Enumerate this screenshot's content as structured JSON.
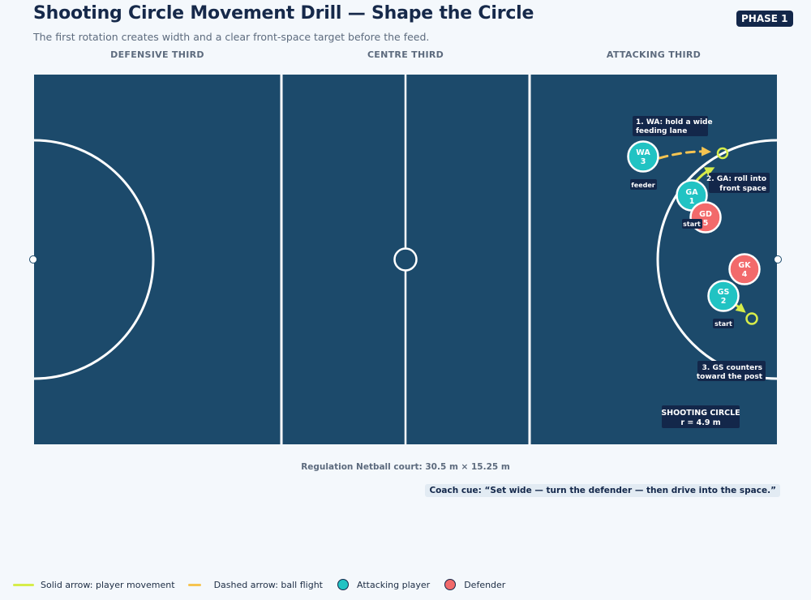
{
  "header": {
    "title": "Shooting Circle Movement Drill — Shape the Circle",
    "subtitle": "The first rotation creates width and a clear front-space target before the feed.",
    "phase_badge": "PHASE 1"
  },
  "thirds": [
    "DEFENSIVE THIRD",
    "CENTRE THIRD",
    "ATTACKING THIRD"
  ],
  "court": {
    "color": "#1c4a6b",
    "line_color": "#ffffff",
    "note": "Regulation Netball court: 30.5 m × 15.25 m",
    "shooting_circle_label": [
      "SHOOTING CIRCLE",
      "r = 4.9 m"
    ]
  },
  "colors": {
    "attacker": "#21c3c3",
    "defender": "#f26a6b",
    "movement": "#d6ec4a",
    "ball": "#f6c451",
    "label_bg": "#13274a"
  },
  "players": [
    {
      "code": "WA",
      "number": "3",
      "team": "attacker"
    },
    {
      "code": "GA",
      "number": "1",
      "team": "attacker"
    },
    {
      "code": "GD",
      "number": "5",
      "team": "defender"
    },
    {
      "code": "GK",
      "number": "4",
      "team": "defender"
    },
    {
      "code": "GS",
      "number": "2",
      "team": "attacker"
    }
  ],
  "tags": {
    "feeder": "feeder",
    "start_ga": "start",
    "start_gs": "start"
  },
  "callouts": {
    "step1": [
      "1. WA: hold a wide",
      "feeding lane"
    ],
    "step2": [
      "2. GA: roll into",
      "front space"
    ],
    "step3": [
      "3. GS counters",
      "toward the post"
    ]
  },
  "coach_cue": "Coach cue: “Set wide — turn the defender — then drive into the space.”",
  "legend": [
    {
      "label": "Solid arrow: player movement",
      "icon": "solid-line",
      "color": "#d6ec4a"
    },
    {
      "label": "Dashed arrow: ball flight",
      "icon": "dashed-line",
      "color": "#f6c451"
    },
    {
      "label": "Attacking player",
      "icon": "dot",
      "color": "#21c3c3"
    },
    {
      "label": "Defender",
      "icon": "dot",
      "color": "#f26a6b"
    }
  ]
}
